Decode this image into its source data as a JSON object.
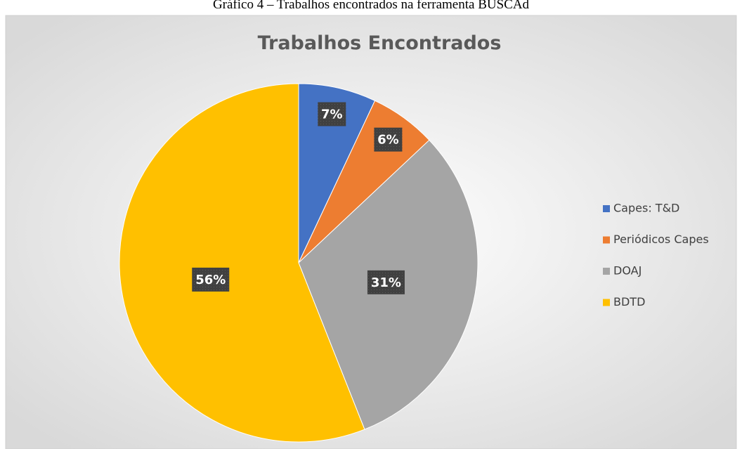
{
  "caption": "Gráfico 4 – Trabalhos encontrados na ferramenta BUSCAd",
  "chart_data": {
    "type": "pie",
    "title": "Trabalhos Encontrados",
    "categories": [
      "Capes: T&D",
      "Periódicos Capes",
      "DOAJ",
      "BDTD"
    ],
    "values": [
      7,
      6,
      31,
      56
    ],
    "value_labels": [
      "7%",
      "6%",
      "31%",
      "56%"
    ],
    "colors": [
      "#4472c4",
      "#ed7d31",
      "#a5a5a5",
      "#ffc000"
    ],
    "legend": "right"
  }
}
